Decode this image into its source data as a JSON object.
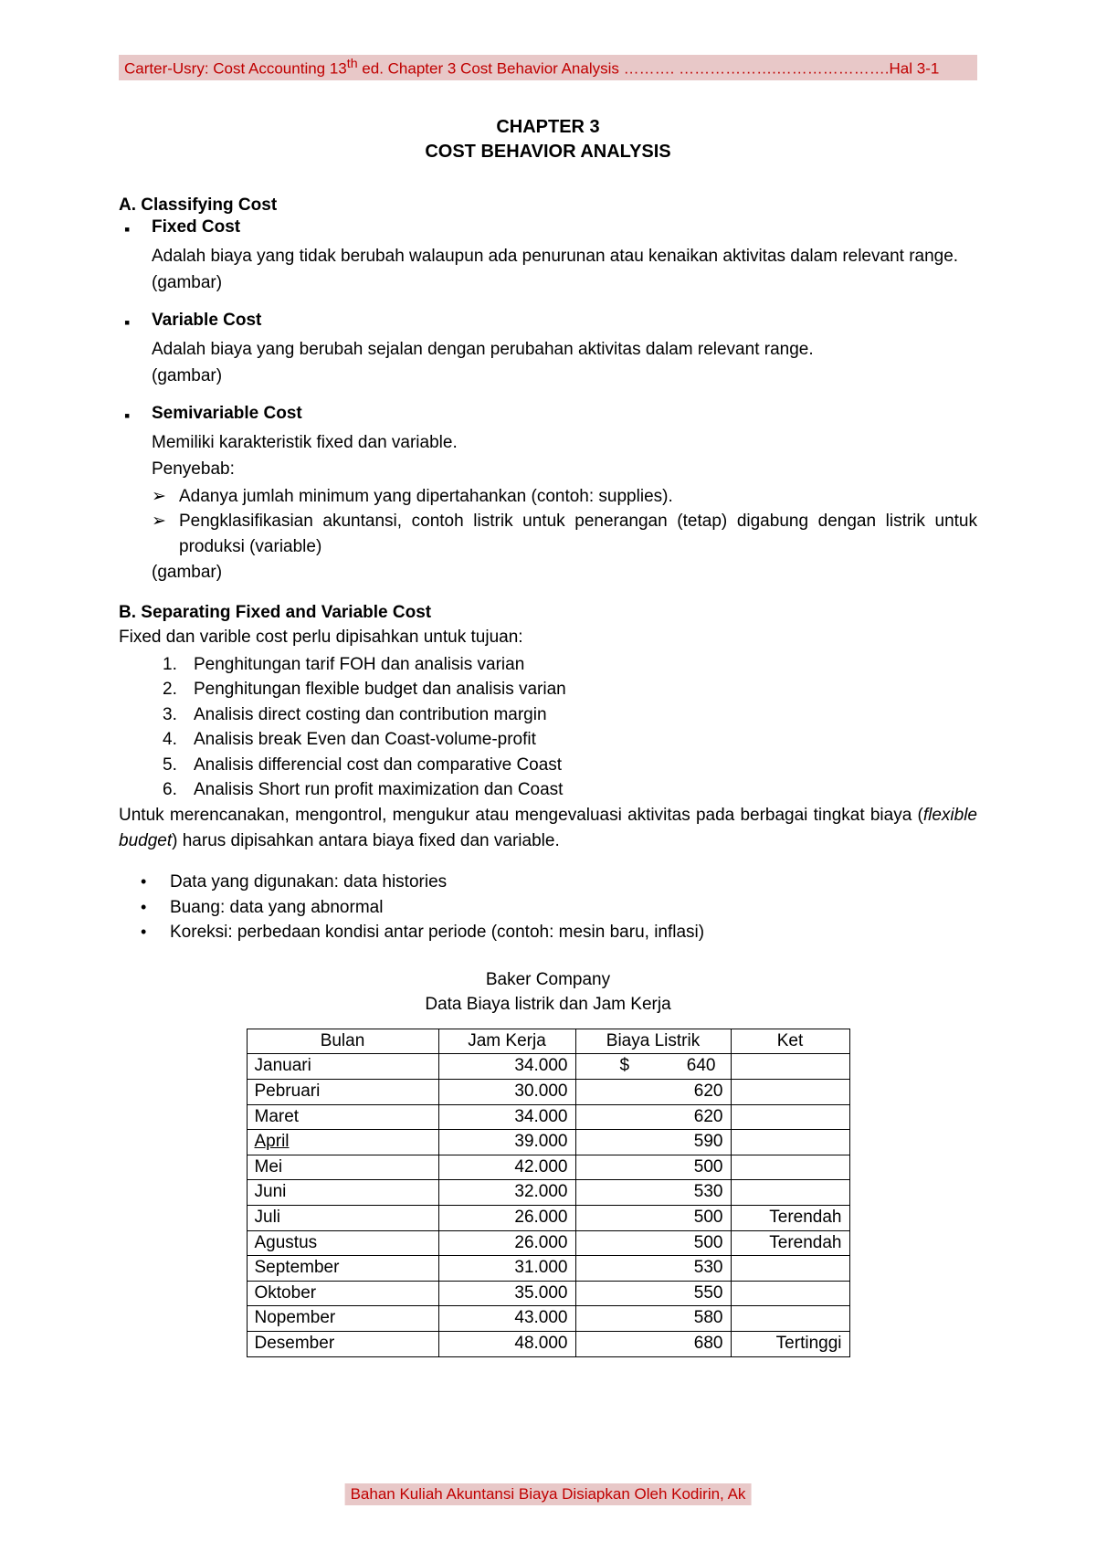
{
  "header": {
    "text_left": "Carter-Usry: Cost Accounting 13",
    "text_super": "th",
    "text_mid": " ed.  Chapter 3  Cost Behavior Analysis ………. ……………….………………….Hal 3-1"
  },
  "chapter": {
    "number": "CHAPTER 3",
    "title": "COST BEHAVIOR ANALYSIS"
  },
  "sectionA": {
    "heading": "A.  Classifying Cost",
    "items": [
      {
        "title": "Fixed Cost",
        "body": "Adalah biaya yang tidak berubah walaupun ada penurunan atau kenaikan aktivitas dalam relevant range.",
        "gambar": "(gambar)"
      },
      {
        "title": "Variable Cost",
        "body": "Adalah biaya yang berubah sejalan dengan perubahan aktivitas dalam relevant range.",
        "gambar": "(gambar)"
      },
      {
        "title": "Semivariable Cost",
        "body1": "Memiliki karakteristik fixed dan variable.",
        "body2": "Penyebab:",
        "arrows": [
          "Adanya jumlah minimum yang dipertahankan (contoh: supplies).",
          "Pengklasifikasian akuntansi, contoh listrik untuk penerangan (tetap) digabung dengan listrik untuk produksi (variable)"
        ],
        "gambar": "(gambar)"
      }
    ]
  },
  "sectionB": {
    "heading": "B.  Separating Fixed and Variable Cost",
    "intro": "Fixed dan varible cost perlu dipisahkan untuk tujuan:",
    "numlist": [
      "Penghitungan tarif FOH dan analisis varian",
      "Penghitungan flexible budget dan analisis varian",
      "Analisis direct costing dan contribution margin",
      "Analisis break Even dan Coast-volume-profit",
      "Analisis differencial cost dan comparative Coast",
      "Analisis Short run profit maximization dan Coast"
    ],
    "outro_pre": "Untuk merencanakan, mengontrol, mengukur atau mengevaluasi aktivitas pada berbagai tingkat biaya (",
    "outro_italic": "flexible budget",
    "outro_post": ") harus dipisahkan antara biaya fixed dan variable.",
    "discs": [
      "Data yang digunakan: data histories",
      "Buang: data yang abnormal",
      "Koreksi: perbedaan kondisi antar periode (contoh: mesin baru, inflasi)"
    ]
  },
  "table": {
    "caption1": "Baker Company",
    "caption2": "Data Biaya listrik dan Jam Kerja",
    "headers": [
      "Bulan",
      "Jam Kerja",
      "Biaya Listrik",
      "Ket"
    ],
    "rows": [
      {
        "bulan": "Januari",
        "jam": "34.000",
        "biaya": "640",
        "dollar": "$",
        "ket": "",
        "u": false
      },
      {
        "bulan": "Pebruari",
        "jam": "30.000",
        "biaya": "620",
        "dollar": "",
        "ket": "",
        "u": false
      },
      {
        "bulan": "Maret",
        "jam": "34.000",
        "biaya": "620",
        "dollar": "",
        "ket": "",
        "u": false
      },
      {
        "bulan": "April",
        "jam": "39.000",
        "biaya": "590",
        "dollar": "",
        "ket": "",
        "u": true
      },
      {
        "bulan": "Mei",
        "jam": "42.000",
        "biaya": "500",
        "dollar": "",
        "ket": "",
        "u": false
      },
      {
        "bulan": "Juni",
        "jam": "32.000",
        "biaya": "530",
        "dollar": "",
        "ket": "",
        "u": false
      },
      {
        "bulan": "Juli",
        "jam": "26.000",
        "biaya": "500",
        "dollar": "",
        "ket": "Terendah",
        "u": false
      },
      {
        "bulan": "Agustus",
        "jam": "26.000",
        "biaya": "500",
        "dollar": "",
        "ket": "Terendah",
        "u": false
      },
      {
        "bulan": "September",
        "jam": "31.000",
        "biaya": "530",
        "dollar": "",
        "ket": "",
        "u": false
      },
      {
        "bulan": "Oktober",
        "jam": "35.000",
        "biaya": "550",
        "dollar": "",
        "ket": "",
        "u": false
      },
      {
        "bulan": "Nopember",
        "jam": "43.000",
        "biaya": "580",
        "dollar": "",
        "ket": "",
        "u": false
      },
      {
        "bulan": "Desember",
        "jam": "48.000",
        "biaya": "680",
        "dollar": "",
        "ket": "Tertinggi",
        "u": false
      }
    ]
  },
  "footer": {
    "text": "Bahan Kuliah Akuntansi Biaya Disiapkan Oleh Kodirin, Ak"
  }
}
